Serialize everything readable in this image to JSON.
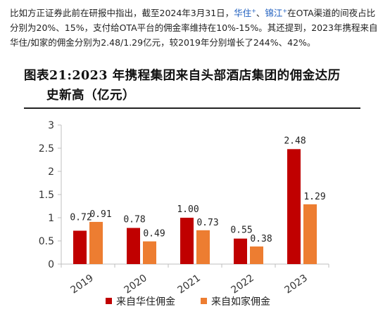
{
  "article": {
    "part1": "比如方正证券此前在研报中指出，截至2024年3月31日，",
    "brand1": "华住",
    "sep": "、",
    "brand2": "锦江",
    "plus": "+",
    "part2": "在OTA渠道的间夜占比分别为20%、15%，支付给OTA平台的佣金率维持在10%-15%。其还提到，2023年携程来自华住/如家的佣金分别为2.48/1.29亿元，较2019年分别增长了244%、42%。"
  },
  "chart_data": {
    "type": "bar",
    "title_line1": "图表21:2023 年携程集团来自头部酒店集团的佣金达历",
    "title_line2": "史新高（亿元）",
    "categories": [
      "2019",
      "2020",
      "2021",
      "2022",
      "2023"
    ],
    "series": [
      {
        "name": "来自华住佣金",
        "color": "#c00000",
        "values": [
          0.72,
          0.78,
          1.0,
          0.55,
          2.48
        ],
        "labels": [
          "0.72",
          "0.78",
          "1.00",
          "0.55",
          "2.48"
        ]
      },
      {
        "name": "来自如家佣金",
        "color": "#ed7d31",
        "values": [
          0.91,
          0.49,
          0.73,
          0.38,
          1.29
        ],
        "labels": [
          "0.91",
          "0.49",
          "0.73",
          "0.38",
          "1.29"
        ]
      }
    ],
    "ylim": [
      0,
      3
    ],
    "yticks": [
      "0",
      "0.5",
      "1",
      "1.5",
      "2",
      "2.5",
      "3"
    ],
    "grid": false,
    "legend_position": "bottom"
  }
}
